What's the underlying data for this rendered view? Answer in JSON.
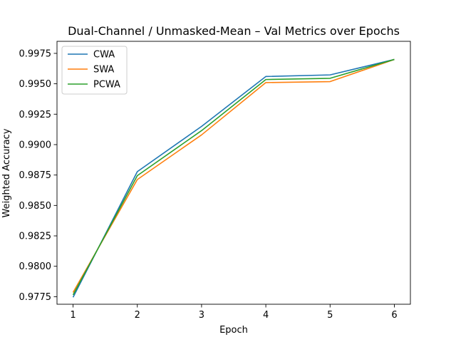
{
  "chart_data": {
    "type": "line",
    "title": "Dual-Channel / Unmasked-Mean – Val Metrics over Epochs",
    "xlabel": "Epoch",
    "ylabel": "Weighted Accuracy",
    "x": [
      1,
      2,
      3,
      4,
      5,
      6
    ],
    "xlim": [
      0.75,
      6.25
    ],
    "ylim": [
      0.97688,
      0.99849
    ],
    "xticks": [
      1,
      2,
      3,
      4,
      5,
      6
    ],
    "yticks": [
      0.9775,
      0.98,
      0.9825,
      0.985,
      0.9875,
      0.99,
      0.9925,
      0.995,
      0.9975
    ],
    "ytick_labels": [
      "0.9775",
      "0.9800",
      "0.9825",
      "0.9850",
      "0.9875",
      "0.9900",
      "0.9925",
      "0.9950",
      "0.9975"
    ],
    "grid": false,
    "legend_position": "top-left",
    "series": [
      {
        "name": "CWA",
        "color": "#1f77b4",
        "values": [
          0.97745,
          0.98778,
          0.9915,
          0.9956,
          0.99573,
          0.997
        ]
      },
      {
        "name": "SWA",
        "color": "#ff7f0e",
        "values": [
          0.97785,
          0.98713,
          0.9908,
          0.9951,
          0.99518,
          0.997
        ]
      },
      {
        "name": "PCWA",
        "color": "#2ca02c",
        "values": [
          0.97765,
          0.98745,
          0.99115,
          0.99535,
          0.99545,
          0.997
        ]
      }
    ]
  }
}
